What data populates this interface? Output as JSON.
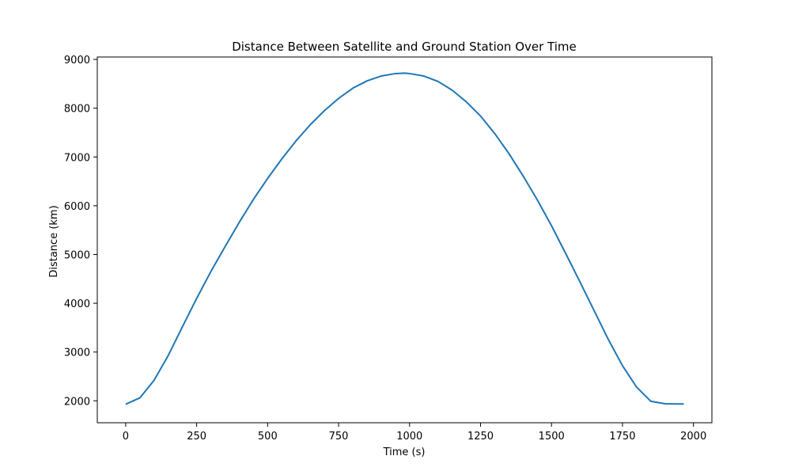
{
  "chart_data": {
    "type": "line",
    "title": "Distance Between Satellite and Ground Station Over Time",
    "xlabel": "Time (s)",
    "ylabel": "Distance (km)",
    "xlim": [
      -100,
      2065
    ],
    "ylim": [
      1550,
      9050
    ],
    "xticks": [
      0,
      250,
      500,
      750,
      1000,
      1250,
      1500,
      1750,
      2000
    ],
    "yticks": [
      2000,
      3000,
      4000,
      5000,
      6000,
      7000,
      8000,
      9000
    ],
    "grid": false,
    "legend": "none",
    "series": [
      {
        "color": "#1f77b4",
        "x": [
          0,
          50,
          100,
          150,
          200,
          250,
          300,
          350,
          400,
          450,
          500,
          550,
          600,
          650,
          700,
          750,
          800,
          850,
          900,
          950,
          983,
          1000,
          1050,
          1100,
          1150,
          1200,
          1250,
          1300,
          1350,
          1400,
          1450,
          1500,
          1550,
          1600,
          1650,
          1700,
          1750,
          1800,
          1850,
          1900,
          1940,
          1966
        ],
        "y": [
          1930,
          2060,
          2420,
          2930,
          3520,
          4100,
          4650,
          5160,
          5660,
          6130,
          6560,
          6960,
          7330,
          7660,
          7950,
          8200,
          8410,
          8560,
          8660,
          8710,
          8720,
          8710,
          8660,
          8550,
          8370,
          8130,
          7840,
          7480,
          7070,
          6610,
          6120,
          5590,
          5020,
          4440,
          3850,
          3260,
          2720,
          2280,
          1990,
          1940,
          1935,
          1935
        ]
      }
    ]
  }
}
